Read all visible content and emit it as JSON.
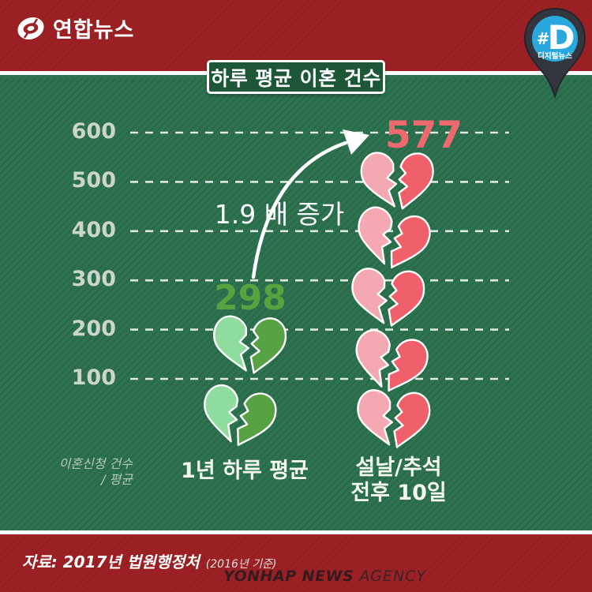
{
  "header": {
    "logo_text": "연합뉴스",
    "badge": {
      "hash": "#",
      "d": "D",
      "label": "디지털뉴스"
    }
  },
  "title": "하루 평균 이혼 건수",
  "chart_data": {
    "type": "bar",
    "subtype": "pictogram-broken-hearts",
    "title": "하루 평균 이혼 건수",
    "categories": [
      "1년 하루 평균",
      "설날/추석 전후 10일"
    ],
    "values": [
      298,
      577
    ],
    "value_labels": [
      "298",
      "577"
    ],
    "icon": "broken-heart-icon",
    "icon_counts": [
      2,
      5
    ],
    "annotation": "1.9 배 증가",
    "axis_caption_line1": "이혼신청 건수",
    "axis_caption_line2": "/ 평균",
    "yticks": [
      600,
      500,
      400,
      300,
      200,
      100
    ],
    "ylim": [
      0,
      650
    ],
    "grid": "dashed-horizontal",
    "legend": "none",
    "series_colors": [
      {
        "light": "#8edc9e",
        "dark": "#57a344"
      },
      {
        "light": "#f4a8b1",
        "dark": "#f0606a"
      }
    ],
    "value_label_colors": [
      "#57a33f",
      "#ee696e"
    ]
  },
  "category_display": {
    "col1_line1": "1년 하루 평균",
    "col2_line1": "설날/추석",
    "col2_line2": "전후 10일"
  },
  "footer": {
    "source_main": "자료: 2017년 법원행정처",
    "source_note": "(2016년 기준)",
    "agency_bold": "YONHAP NEWS",
    "agency_light": "AGENCY"
  },
  "colors": {
    "band_red": "#9d2124",
    "board_green": "#2d7350",
    "title_box_green": "#1d5737",
    "pin_body": "#33363e",
    "pin_circle_blue": "#2aa7dd",
    "gridline": "rgba(255,255,255,0.85)",
    "tick_text": "#ccd5cb"
  }
}
